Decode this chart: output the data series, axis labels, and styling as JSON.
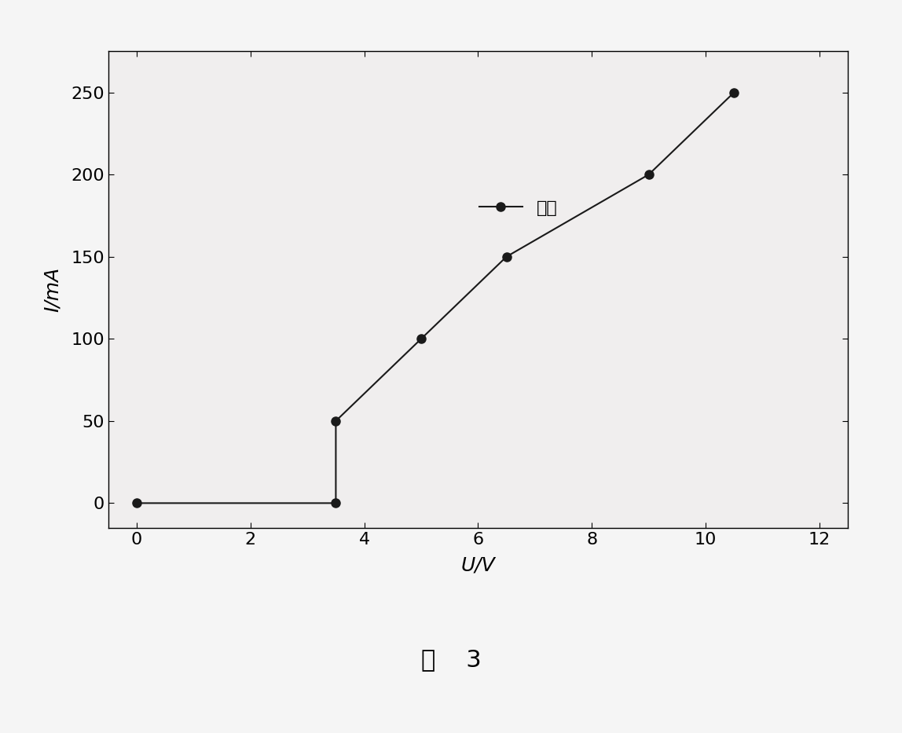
{
  "x_data": [
    0,
    3.5,
    3.5,
    5.0,
    6.5,
    9.0,
    10.5
  ],
  "y_data": [
    0,
    0,
    50,
    100,
    150,
    200,
    250
  ],
  "xlabel": "U/V",
  "ylabel": "I/mA",
  "xlim": [
    -0.5,
    12.5
  ],
  "ylim": [
    -15,
    275
  ],
  "xticks": [
    0,
    2,
    4,
    6,
    8,
    10,
    12
  ],
  "yticks": [
    0,
    50,
    100,
    150,
    200,
    250
  ],
  "legend_label": "电流",
  "figure_label": "图    3",
  "marker": "o",
  "marker_color": "#1a1a1a",
  "line_color": "#1a1a1a",
  "marker_size": 8,
  "line_width": 1.5,
  "background_color": "#f0eeee",
  "title_fontsize": 22,
  "label_fontsize": 18,
  "tick_fontsize": 16,
  "legend_fontsize": 16
}
